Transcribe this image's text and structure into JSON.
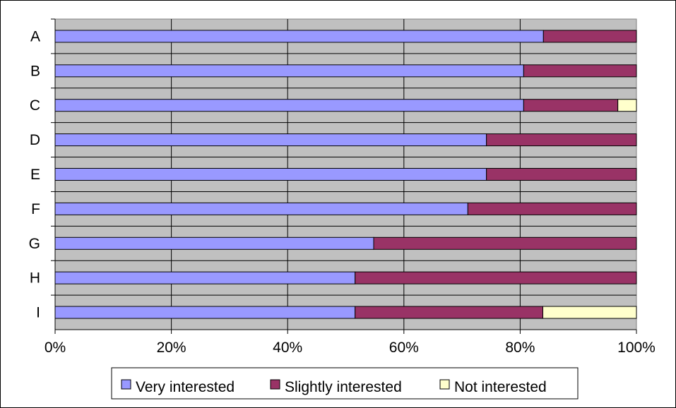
{
  "chart_data": {
    "type": "bar",
    "orientation": "horizontal",
    "stacked": "percent",
    "categories": [
      "A",
      "B",
      "C",
      "D",
      "E",
      "F",
      "G",
      "H",
      "I"
    ],
    "series": [
      {
        "name": "Very interested",
        "color": "#9999ff",
        "values": [
          84,
          80.6,
          80.6,
          74.2,
          74.2,
          71,
          54.8,
          51.6,
          51.6
        ]
      },
      {
        "name": "Slightly interested",
        "color": "#993366",
        "values": [
          16,
          19.4,
          16.2,
          25.8,
          25.8,
          29,
          45.2,
          48.4,
          32.3
        ]
      },
      {
        "name": "Not interested",
        "color": "#ffffcc",
        "values": [
          0,
          0,
          3.2,
          0,
          0,
          0,
          0,
          0,
          16.1
        ]
      }
    ],
    "xlim": [
      0,
      100
    ],
    "xticks": [
      "0%",
      "20%",
      "40%",
      "60%",
      "80%",
      "100%"
    ],
    "grid": true,
    "plot_background": "#c0c0c0",
    "legend_position": "bottom",
    "title": "",
    "xlabel": "",
    "ylabel": ""
  }
}
